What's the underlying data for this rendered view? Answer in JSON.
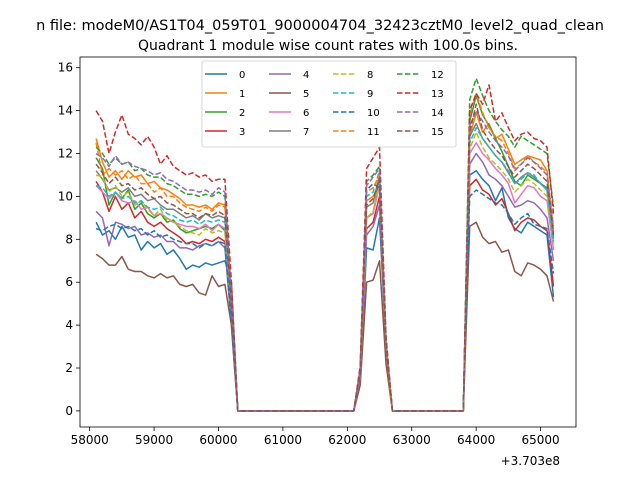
{
  "chart_data": {
    "type": "line",
    "suptitle": "n file: modeM0/AS1T04_059T01_9000004704_32423cztM0_level2_quad_clean",
    "title": "Quadrant 1 module wise count rates with 100.0s bins.",
    "xlabel": "",
    "ylabel": "",
    "offset_text": "+3.703e8",
    "xlim": [
      57850,
      65550
    ],
    "ylim": [
      -0.75,
      16.5
    ],
    "xticks": [
      58000,
      59000,
      60000,
      61000,
      62000,
      63000,
      64000,
      65000
    ],
    "yticks": [
      0,
      2,
      4,
      6,
      8,
      10,
      12,
      14,
      16
    ],
    "legend_position": "upper-center",
    "x": [
      58100,
      58200,
      58300,
      58400,
      58500,
      58600,
      58700,
      58800,
      58900,
      59000,
      59100,
      59200,
      59300,
      59400,
      59500,
      59600,
      59700,
      59800,
      59900,
      60000,
      60100,
      60200,
      60300,
      60400,
      62100,
      62200,
      62300,
      62400,
      62500,
      62600,
      62700,
      63800,
      63900,
      64000,
      64100,
      64200,
      64300,
      64400,
      64500,
      64600,
      64700,
      64800,
      64900,
      65000,
      65100,
      65200
    ],
    "series": [
      {
        "name": "0",
        "color": "#1f77b4",
        "dash": "solid",
        "values": [
          8.8,
          8.2,
          8.4,
          8.0,
          8.6,
          8.1,
          8.2,
          7.5,
          7.9,
          7.6,
          7.8,
          7.3,
          7.5,
          7.1,
          6.6,
          6.8,
          6.7,
          6.9,
          6.8,
          6.9,
          7.0,
          6.0,
          0,
          0,
          0,
          1.5,
          7.6,
          7.5,
          9.0,
          3.0,
          0,
          0,
          11.0,
          11.2,
          10.8,
          10.5,
          9.8,
          10.4,
          9.0,
          8.5,
          8.3,
          8.8,
          8.6,
          8.4,
          8.2,
          5.3
        ]
      },
      {
        "name": "1",
        "color": "#ff7f0e",
        "dash": "solid",
        "values": [
          12.7,
          11.6,
          10.9,
          11.2,
          10.8,
          11.2,
          10.9,
          11.0,
          10.6,
          10.7,
          10.4,
          10.3,
          10.1,
          9.9,
          9.6,
          9.6,
          9.5,
          9.6,
          9.4,
          9.7,
          9.6,
          5.0,
          0,
          0,
          0,
          1.8,
          9.8,
          10.0,
          10.5,
          3.0,
          0,
          0,
          12.8,
          13.9,
          13.0,
          13.4,
          12.7,
          12.9,
          12.2,
          11.5,
          11.7,
          11.9,
          11.8,
          11.7,
          11.2,
          8.3
        ]
      },
      {
        "name": "2",
        "color": "#2ca02c",
        "dash": "solid",
        "values": [
          11.8,
          11.3,
          9.6,
          10.2,
          9.9,
          10.3,
          9.4,
          9.7,
          9.2,
          9.0,
          9.2,
          8.8,
          8.9,
          8.5,
          8.3,
          8.4,
          8.5,
          8.6,
          8.5,
          8.7,
          8.4,
          4.5,
          0,
          0,
          0,
          1.7,
          9.0,
          9.2,
          10.8,
          3.0,
          0,
          0,
          13.5,
          14.7,
          13.8,
          13.3,
          12.7,
          12.1,
          11.4,
          10.7,
          10.5,
          11.0,
          10.8,
          10.6,
          10.4,
          8.1
        ]
      },
      {
        "name": "3",
        "color": "#d62728",
        "dash": "solid",
        "values": [
          10.7,
          10.2,
          9.3,
          10.0,
          9.4,
          9.7,
          9.0,
          9.3,
          8.8,
          8.6,
          8.8,
          8.5,
          8.3,
          8.1,
          7.8,
          7.9,
          7.8,
          8.0,
          7.9,
          8.1,
          7.9,
          4.4,
          0,
          0,
          0,
          1.6,
          8.5,
          8.8,
          10.0,
          3.0,
          0,
          0,
          10.5,
          10.8,
          10.3,
          10.1,
          9.6,
          9.9,
          9.2,
          8.4,
          8.8,
          9.0,
          8.9,
          8.6,
          8.4,
          5.8
        ]
      },
      {
        "name": "4",
        "color": "#9467bd",
        "dash": "solid",
        "values": [
          9.3,
          9.0,
          7.7,
          8.8,
          8.7,
          8.5,
          8.6,
          8.2,
          8.3,
          8.1,
          8.2,
          7.9,
          7.9,
          7.6,
          7.6,
          7.5,
          7.7,
          7.8,
          7.7,
          7.9,
          7.6,
          4.0,
          0,
          0,
          0,
          1.5,
          8.2,
          8.6,
          9.6,
          3.0,
          0,
          0,
          11.5,
          12.0,
          11.6,
          11.0,
          10.8,
          10.5,
          10.0,
          9.5,
          9.6,
          9.8,
          9.7,
          9.4,
          9.0,
          7.0
        ]
      },
      {
        "name": "5",
        "color": "#8c564b",
        "dash": "solid",
        "values": [
          7.3,
          7.1,
          6.8,
          6.8,
          7.2,
          6.6,
          6.5,
          6.5,
          6.3,
          6.2,
          6.4,
          6.2,
          6.3,
          5.9,
          5.8,
          5.9,
          5.5,
          5.4,
          6.3,
          5.8,
          5.9,
          4.0,
          0,
          0,
          0,
          1.2,
          6.0,
          6.1,
          7.0,
          2.2,
          0,
          0,
          8.6,
          8.8,
          8.1,
          7.8,
          7.9,
          7.4,
          7.5,
          6.5,
          6.3,
          6.9,
          6.8,
          6.6,
          6.3,
          5.1
        ]
      },
      {
        "name": "6",
        "color": "#e377c2",
        "dash": "solid",
        "values": [
          10.5,
          10.2,
          9.9,
          10.2,
          9.8,
          9.7,
          9.8,
          9.4,
          9.5,
          9.1,
          9.2,
          9.0,
          8.8,
          8.7,
          8.6,
          8.6,
          8.5,
          8.7,
          8.4,
          8.7,
          8.5,
          4.8,
          0,
          0,
          0,
          1.6,
          9.0,
          9.2,
          10.5,
          3.0,
          0,
          0,
          12.0,
          12.5,
          12.0,
          11.7,
          11.3,
          11.0,
          10.6,
          9.7,
          10.1,
          10.5,
          10.4,
          10.0,
          9.8,
          7.5
        ]
      },
      {
        "name": "7",
        "color": "#7f7f7f",
        "dash": "solid",
        "values": [
          11.2,
          10.8,
          10.3,
          10.4,
          10.2,
          10.4,
          10.0,
          10.1,
          9.8,
          9.9,
          9.6,
          9.4,
          9.4,
          9.2,
          9.0,
          9.1,
          8.9,
          9.2,
          9.0,
          9.1,
          9.0,
          4.9,
          0,
          0,
          0,
          1.7,
          9.5,
          9.7,
          11.0,
          3.1,
          0,
          0,
          12.8,
          13.4,
          12.7,
          12.3,
          11.9,
          11.6,
          11.1,
          10.6,
          10.9,
          11.1,
          10.9,
          10.6,
          10.3,
          8.0
        ]
      },
      {
        "name": "8",
        "color": "#bcbd22",
        "dash": "dashed",
        "values": [
          11.0,
          10.9,
          10.2,
          10.5,
          10.0,
          10.2,
          9.6,
          9.8,
          9.4,
          9.1,
          9.4,
          8.9,
          8.8,
          8.6,
          8.4,
          8.3,
          8.2,
          8.5,
          8.3,
          8.4,
          8.3,
          4.6,
          0,
          0,
          0,
          1.8,
          9.0,
          9.3,
          10.6,
          3.0,
          0,
          0,
          12.2,
          13.0,
          12.3,
          11.8,
          11.5,
          11.2,
          10.8,
          10.2,
          10.5,
          10.8,
          10.6,
          10.3,
          10.0,
          7.8
        ]
      },
      {
        "name": "9",
        "color": "#17becf",
        "dash": "dashed",
        "values": [
          10.5,
          10.4,
          10.0,
          10.2,
          9.9,
          10.0,
          9.7,
          9.8,
          9.5,
          9.4,
          9.5,
          9.2,
          9.1,
          8.9,
          8.8,
          8.9,
          8.7,
          8.9,
          8.8,
          8.9,
          8.8,
          4.7,
          0,
          0,
          0,
          1.9,
          10.0,
          10.2,
          11.2,
          3.2,
          0,
          0,
          12.5,
          13.2,
          12.7,
          12.3,
          11.9,
          11.6,
          11.2,
          10.6,
          10.8,
          11.1,
          11.0,
          10.6,
          10.3,
          7.9
        ]
      },
      {
        "name": "10",
        "color": "#1f77b4",
        "dash": "dashed",
        "values": [
          8.5,
          8.4,
          8.6,
          8.7,
          8.5,
          8.6,
          8.4,
          8.5,
          8.2,
          8.4,
          8.1,
          8.2,
          8.0,
          7.9,
          7.8,
          7.8,
          7.6,
          7.8,
          7.7,
          7.9,
          7.8,
          4.2,
          0,
          0,
          0,
          1.7,
          10.3,
          10.6,
          10.4,
          3.0,
          0,
          0,
          10.0,
          10.3,
          10.1,
          9.9,
          9.7,
          9.6,
          9.2,
          8.7,
          9.0,
          9.2,
          8.7,
          8.6,
          8.5,
          6.4
        ]
      },
      {
        "name": "11",
        "color": "#ff7f0e",
        "dash": "dashed",
        "values": [
          12.5,
          11.0,
          11.3,
          11.0,
          11.2,
          10.8,
          11.0,
          10.6,
          10.6,
          10.2,
          10.4,
          10.0,
          10.0,
          9.7,
          9.5,
          9.4,
          9.3,
          9.5,
          9.3,
          9.6,
          9.5,
          5.1,
          0,
          0,
          0,
          1.9,
          10.2,
          10.4,
          11.0,
          3.1,
          0,
          0,
          13.8,
          14.8,
          13.9,
          13.2,
          12.8,
          12.6,
          12.0,
          11.3,
          11.5,
          11.9,
          11.6,
          11.4,
          11.1,
          8.5
        ]
      },
      {
        "name": "12",
        "color": "#2ca02c",
        "dash": "dashed",
        "values": [
          12.3,
          12.0,
          11.5,
          11.8,
          11.5,
          11.6,
          11.2,
          11.3,
          11.0,
          10.9,
          10.9,
          10.6,
          10.5,
          10.3,
          10.1,
          10.1,
          10.0,
          10.1,
          10.0,
          10.2,
          10.0,
          5.3,
          0,
          0,
          0,
          2.0,
          10.7,
          11.0,
          11.4,
          3.3,
          0,
          0,
          14.5,
          15.5,
          14.7,
          14.0,
          13.5,
          13.1,
          12.8,
          12.3,
          12.8,
          12.6,
          12.4,
          12.2,
          12.0,
          9.5
        ]
      },
      {
        "name": "13",
        "color": "#d62728",
        "dash": "dashed",
        "values": [
          14.0,
          13.5,
          12.0,
          13.0,
          13.8,
          12.9,
          12.7,
          12.4,
          12.8,
          12.3,
          11.5,
          11.9,
          11.4,
          11.2,
          11.0,
          11.1,
          10.9,
          11.0,
          10.7,
          10.8,
          10.8,
          6.0,
          0,
          0,
          0,
          2.1,
          11.3,
          11.8,
          12.3,
          3.5,
          0,
          0,
          14.0,
          14.8,
          14.3,
          15.2,
          13.5,
          13.9,
          13.2,
          12.6,
          12.9,
          13.0,
          12.7,
          12.6,
          12.3,
          9.2
        ]
      },
      {
        "name": "14",
        "color": "#9467bd",
        "dash": "dashed",
        "values": [
          12.0,
          11.8,
          11.4,
          11.9,
          11.5,
          11.6,
          11.4,
          11.3,
          11.2,
          11.0,
          11.1,
          10.8,
          10.7,
          10.5,
          10.3,
          10.3,
          10.2,
          10.3,
          10.1,
          10.4,
          10.2,
          5.4,
          0,
          0,
          0,
          1.9,
          10.5,
          10.9,
          11.3,
          3.2,
          0,
          0,
          13.3,
          14.0,
          13.5,
          13.0,
          12.6,
          12.3,
          11.9,
          11.2,
          11.5,
          11.8,
          11.6,
          11.3,
          11.0,
          8.6
        ]
      },
      {
        "name": "15",
        "color": "#8c564b",
        "dash": "dashed",
        "values": [
          11.5,
          11.1,
          10.6,
          10.9,
          10.5,
          10.6,
          10.3,
          10.4,
          10.1,
          9.9,
          10.0,
          9.7,
          9.6,
          9.4,
          9.2,
          9.2,
          9.0,
          9.2,
          9.1,
          9.3,
          9.1,
          4.9,
          0,
          0,
          0,
          1.8,
          9.6,
          9.9,
          10.8,
          3.1,
          0,
          0,
          13.0,
          14.3,
          13.1,
          12.6,
          12.2,
          11.9,
          11.4,
          10.9,
          11.2,
          11.5,
          11.3,
          11.0,
          10.7,
          8.2
        ]
      }
    ]
  }
}
